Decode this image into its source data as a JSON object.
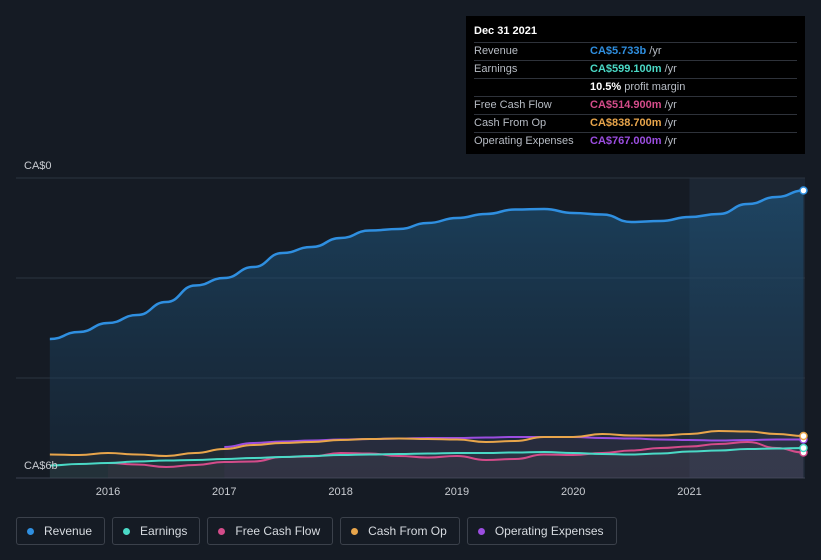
{
  "chart_data": {
    "type": "area",
    "x_ticks": [
      "2016",
      "2017",
      "2018",
      "2019",
      "2020",
      "2021"
    ],
    "y_ticks": [
      "CA$0",
      "CA$6b"
    ],
    "ylim": [
      0,
      6
    ],
    "xlim": [
      2015.5,
      2021.98
    ],
    "forecast_start": 2021.0,
    "series": [
      {
        "name": "Revenue",
        "color": "#2f8fe0",
        "points": [
          [
            2015.5,
            2.78
          ],
          [
            2015.75,
            2.92
          ],
          [
            2016.0,
            3.1
          ],
          [
            2016.25,
            3.26
          ],
          [
            2016.5,
            3.52
          ],
          [
            2016.75,
            3.85
          ],
          [
            2017.0,
            4.0
          ],
          [
            2017.25,
            4.22
          ],
          [
            2017.5,
            4.5
          ],
          [
            2017.75,
            4.62
          ],
          [
            2018.0,
            4.8
          ],
          [
            2018.25,
            4.95
          ],
          [
            2018.5,
            4.98
          ],
          [
            2018.75,
            5.1
          ],
          [
            2019.0,
            5.2
          ],
          [
            2019.25,
            5.28
          ],
          [
            2019.5,
            5.37
          ],
          [
            2019.75,
            5.38
          ],
          [
            2020.0,
            5.3
          ],
          [
            2020.25,
            5.27
          ],
          [
            2020.5,
            5.12
          ],
          [
            2020.75,
            5.14
          ],
          [
            2021.0,
            5.22
          ],
          [
            2021.25,
            5.28
          ],
          [
            2021.5,
            5.48
          ],
          [
            2021.75,
            5.62
          ],
          [
            2021.98,
            5.75
          ]
        ]
      },
      {
        "name": "Earnings",
        "color": "#4ad9c6",
        "points": [
          [
            2015.5,
            0.25
          ],
          [
            2015.75,
            0.28
          ],
          [
            2016.0,
            0.3
          ],
          [
            2016.25,
            0.33
          ],
          [
            2016.5,
            0.35
          ],
          [
            2016.75,
            0.36
          ],
          [
            2017.0,
            0.38
          ],
          [
            2017.25,
            0.4
          ],
          [
            2017.5,
            0.42
          ],
          [
            2017.75,
            0.44
          ],
          [
            2018.0,
            0.46
          ],
          [
            2018.25,
            0.47
          ],
          [
            2018.5,
            0.48
          ],
          [
            2018.75,
            0.49
          ],
          [
            2019.0,
            0.5
          ],
          [
            2019.25,
            0.5
          ],
          [
            2019.5,
            0.51
          ],
          [
            2019.75,
            0.52
          ],
          [
            2020.0,
            0.5
          ],
          [
            2020.25,
            0.48
          ],
          [
            2020.5,
            0.47
          ],
          [
            2020.75,
            0.49
          ],
          [
            2021.0,
            0.53
          ],
          [
            2021.25,
            0.55
          ],
          [
            2021.5,
            0.58
          ],
          [
            2021.75,
            0.59
          ],
          [
            2021.98,
            0.6
          ]
        ]
      },
      {
        "name": "Free Cash Flow",
        "color": "#d44c8a",
        "points": [
          [
            2016.0,
            0.3
          ],
          [
            2016.25,
            0.27
          ],
          [
            2016.5,
            0.22
          ],
          [
            2016.75,
            0.26
          ],
          [
            2017.0,
            0.32
          ],
          [
            2017.25,
            0.33
          ],
          [
            2017.5,
            0.42
          ],
          [
            2017.75,
            0.43
          ],
          [
            2018.0,
            0.5
          ],
          [
            2018.25,
            0.49
          ],
          [
            2018.5,
            0.44
          ],
          [
            2018.75,
            0.41
          ],
          [
            2019.0,
            0.44
          ],
          [
            2019.25,
            0.36
          ],
          [
            2019.5,
            0.38
          ],
          [
            2019.75,
            0.47
          ],
          [
            2020.0,
            0.46
          ],
          [
            2020.25,
            0.5
          ],
          [
            2020.5,
            0.55
          ],
          [
            2020.75,
            0.6
          ],
          [
            2021.0,
            0.63
          ],
          [
            2021.25,
            0.68
          ],
          [
            2021.5,
            0.72
          ],
          [
            2021.75,
            0.6
          ],
          [
            2021.98,
            0.51
          ]
        ]
      },
      {
        "name": "Cash From Op",
        "color": "#e8a54b",
        "points": [
          [
            2015.5,
            0.47
          ],
          [
            2015.75,
            0.46
          ],
          [
            2016.0,
            0.5
          ],
          [
            2016.25,
            0.47
          ],
          [
            2016.5,
            0.44
          ],
          [
            2016.75,
            0.5
          ],
          [
            2017.0,
            0.58
          ],
          [
            2017.25,
            0.66
          ],
          [
            2017.5,
            0.7
          ],
          [
            2017.75,
            0.72
          ],
          [
            2018.0,
            0.76
          ],
          [
            2018.25,
            0.78
          ],
          [
            2018.5,
            0.79
          ],
          [
            2018.75,
            0.78
          ],
          [
            2019.0,
            0.77
          ],
          [
            2019.25,
            0.72
          ],
          [
            2019.5,
            0.74
          ],
          [
            2019.75,
            0.82
          ],
          [
            2020.0,
            0.82
          ],
          [
            2020.25,
            0.88
          ],
          [
            2020.5,
            0.85
          ],
          [
            2020.75,
            0.85
          ],
          [
            2021.0,
            0.88
          ],
          [
            2021.25,
            0.94
          ],
          [
            2021.5,
            0.93
          ],
          [
            2021.75,
            0.88
          ],
          [
            2021.98,
            0.84
          ]
        ]
      },
      {
        "name": "Operating Expenses",
        "color": "#9b4de0",
        "points": [
          [
            2017.0,
            0.62
          ],
          [
            2017.25,
            0.7
          ],
          [
            2017.5,
            0.73
          ],
          [
            2017.75,
            0.75
          ],
          [
            2018.0,
            0.77
          ],
          [
            2018.25,
            0.78
          ],
          [
            2018.5,
            0.79
          ],
          [
            2018.75,
            0.8
          ],
          [
            2019.0,
            0.8
          ],
          [
            2019.25,
            0.81
          ],
          [
            2019.5,
            0.82
          ],
          [
            2019.75,
            0.82
          ],
          [
            2020.0,
            0.82
          ],
          [
            2020.25,
            0.8
          ],
          [
            2020.5,
            0.79
          ],
          [
            2020.75,
            0.77
          ],
          [
            2021.0,
            0.76
          ],
          [
            2021.25,
            0.75
          ],
          [
            2021.5,
            0.76
          ],
          [
            2021.75,
            0.77
          ],
          [
            2021.98,
            0.77
          ]
        ]
      }
    ]
  },
  "tooltip": {
    "date": "Dec 31 2021",
    "rows": [
      {
        "label": "Revenue",
        "value": "CA$5.733b",
        "unit": "/yr",
        "color": "#2f8fe0"
      },
      {
        "label": "Earnings",
        "value": "CA$599.100m",
        "unit": "/yr",
        "color": "#4ad9c6"
      },
      {
        "label": "",
        "value": "10.5%",
        "unit": "profit margin",
        "color": "#ffffff"
      },
      {
        "label": "Free Cash Flow",
        "value": "CA$514.900m",
        "unit": "/yr",
        "color": "#d44c8a"
      },
      {
        "label": "Cash From Op",
        "value": "CA$838.700m",
        "unit": "/yr",
        "color": "#e8a54b"
      },
      {
        "label": "Operating Expenses",
        "value": "CA$767.000m",
        "unit": "/yr",
        "color": "#9b4de0"
      }
    ]
  },
  "legend": [
    {
      "label": "Revenue",
      "color": "#2f8fe0"
    },
    {
      "label": "Earnings",
      "color": "#4ad9c6"
    },
    {
      "label": "Free Cash Flow",
      "color": "#d44c8a"
    },
    {
      "label": "Cash From Op",
      "color": "#e8a54b"
    },
    {
      "label": "Operating Expenses",
      "color": "#9b4de0"
    }
  ]
}
